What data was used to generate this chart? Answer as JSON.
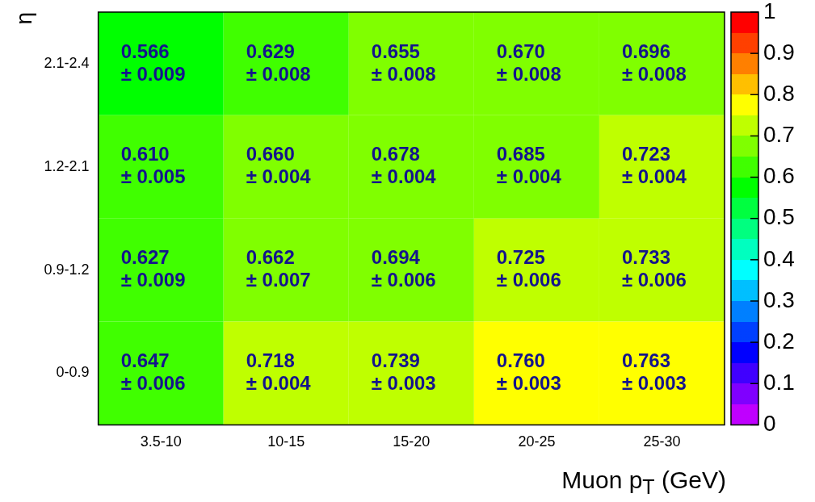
{
  "chart_data": {
    "type": "heatmap",
    "xlabel": "Muon p$_{T}$ (GeV)",
    "ylabel": "η",
    "categories": [
      "3.5-10",
      "10-15",
      "15-20",
      "20-25",
      "25-30"
    ],
    "y_categories": [
      "2.1-2.4",
      "1.2-2.1",
      "0.9-1.2",
      "0-0.9"
    ],
    "cells": [
      [
        0.566,
        0.629,
        0.655,
        0.67,
        0.696
      ],
      [
        0.61,
        0.66,
        0.678,
        0.685,
        0.723
      ],
      [
        0.627,
        0.662,
        0.694,
        0.725,
        0.733
      ],
      [
        0.647,
        0.718,
        0.739,
        0.76,
        0.763
      ]
    ],
    "cell_labels": [
      [
        "0.566\n± 0.009",
        "0.629\n± 0.008",
        "0.655\n± 0.008",
        "0.670\n± 0.008",
        "0.696\n± 0.008"
      ],
      [
        "0.610\n± 0.005",
        "0.660\n± 0.004",
        "0.678\n± 0.004",
        "0.685\n± 0.004",
        "0.723\n± 0.004"
      ],
      [
        "0.627\n± 0.009",
        "0.662\n± 0.007",
        "0.694\n± 0.006",
        "0.725\n± 0.006",
        "0.733\n± 0.006"
      ],
      [
        "0.647\n± 0.006",
        "0.718\n± 0.004",
        "0.739\n± 0.003",
        "0.760\n± 0.003",
        "0.763\n± 0.003"
      ]
    ],
    "clim": [
      0,
      1
    ],
    "cticks": [
      0,
      0.1,
      0.2,
      0.3,
      0.4,
      0.5,
      0.6,
      0.7,
      0.8,
      0.9,
      1
    ]
  }
}
